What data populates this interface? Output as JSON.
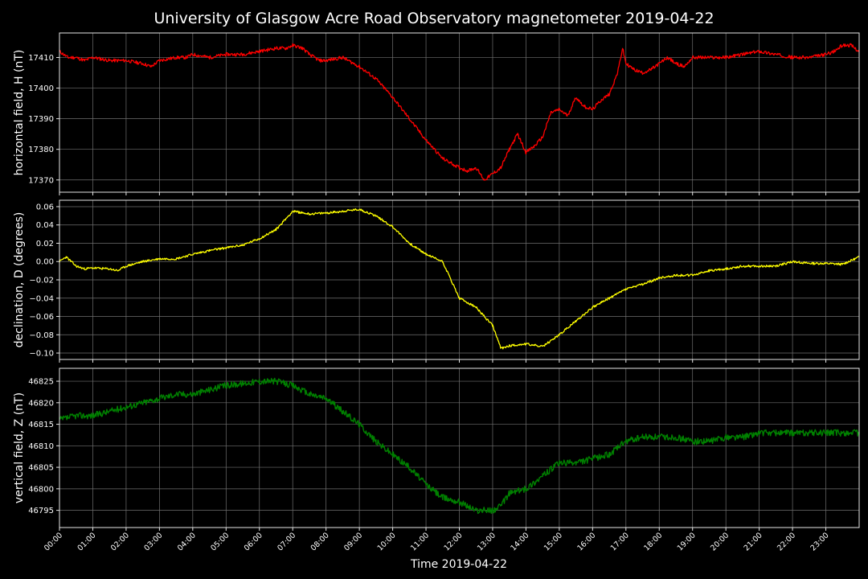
{
  "chart_data": {
    "type": "line",
    "title": "University of Glasgow Acre Road Observatory magnetometer 2019-04-22",
    "xlabel": "Time 2019-04-22",
    "x_tick_labels": [
      "00:00",
      "01:00",
      "02:00",
      "03:00",
      "04:00",
      "05:00",
      "06:00",
      "07:00",
      "08:00",
      "09:00",
      "10:00",
      "11:00",
      "12:00",
      "13:00",
      "14:00",
      "15:00",
      "16:00",
      "17:00",
      "18:00",
      "19:00",
      "20:00",
      "21:00",
      "22:00",
      "23:00"
    ],
    "xlim_hours": [
      0,
      24
    ],
    "panels": [
      {
        "id": "h",
        "ylabel": "horizontal field, H (nT)",
        "color": "#ff0000",
        "ylim": [
          17366,
          17418
        ],
        "yticks": [
          17370,
          17380,
          17390,
          17400,
          17410
        ],
        "ytick_labels": [
          "17370",
          "17380",
          "17390",
          "17400",
          "17410"
        ],
        "x_hours": [
          0,
          0.25,
          0.5,
          0.75,
          1,
          1.5,
          2,
          2.5,
          2.75,
          3,
          3.5,
          3.8,
          4,
          4.5,
          5,
          5.5,
          6,
          6.5,
          6.8,
          7,
          7.3,
          7.5,
          7.8,
          8,
          8.5,
          9,
          9.5,
          10,
          10.5,
          11,
          11.5,
          12,
          12.25,
          12.5,
          12.75,
          13,
          13.25,
          13.5,
          13.75,
          14,
          14.25,
          14.5,
          14.75,
          15,
          15.25,
          15.5,
          15.75,
          16,
          16.25,
          16.5,
          16.75,
          16.9,
          17,
          17.25,
          17.5,
          17.75,
          18,
          18.25,
          18.5,
          18.75,
          19,
          19.5,
          20,
          20.5,
          21,
          21.5,
          22,
          22.5,
          23,
          23.25,
          23.5,
          23.75,
          24
        ],
        "values": [
          17412,
          17410,
          17410,
          17409,
          17410,
          17409,
          17409,
          17408,
          17407,
          17409,
          17410,
          17410,
          17411,
          17410,
          17411,
          17411,
          17412,
          17413,
          17413,
          17414,
          17413,
          17411,
          17409,
          17409,
          17410,
          17407,
          17403,
          17397,
          17390,
          17383,
          17377,
          17374,
          17373,
          17374,
          17370,
          17372,
          17374,
          17380,
          17385,
          17379,
          17381,
          17384,
          17392,
          17393,
          17391,
          17397,
          17394,
          17393,
          17396,
          17398,
          17405,
          17413,
          17408,
          17406,
          17405,
          17406,
          17408,
          17410,
          17408,
          17407,
          17410,
          17410,
          17410,
          17411,
          17412,
          17411,
          17410,
          17410,
          17411,
          17412,
          17414,
          17414,
          17412
        ]
      },
      {
        "id": "d",
        "ylabel": "declination, D (degrees)",
        "color": "#ffff00",
        "ylim": [
          -0.107,
          0.067
        ],
        "yticks": [
          -0.1,
          -0.08,
          -0.06,
          -0.04,
          -0.02,
          0.0,
          0.02,
          0.04,
          0.06
        ],
        "ytick_labels": [
          "−0.10",
          "−0.08",
          "−0.06",
          "−0.04",
          "−0.02",
          "0.00",
          "0.02",
          "0.04",
          "0.06"
        ],
        "x_hours": [
          0,
          0.2,
          0.5,
          0.75,
          1,
          1.5,
          1.75,
          2,
          2.5,
          3,
          3.5,
          4,
          4.5,
          5,
          5.5,
          6,
          6.5,
          7,
          7.5,
          8,
          8.5,
          9,
          9.5,
          10,
          10.5,
          11,
          11.5,
          12,
          12.5,
          13,
          13.25,
          13.5,
          14,
          14.5,
          15,
          15.5,
          16,
          16.5,
          17,
          17.5,
          18,
          18.5,
          19,
          19.5,
          20,
          20.5,
          21,
          21.5,
          22,
          22.5,
          23,
          23.5,
          24
        ],
        "values": [
          0.0,
          0.005,
          -0.005,
          -0.008,
          -0.007,
          -0.008,
          -0.01,
          -0.005,
          0.0,
          0.003,
          0.003,
          0.008,
          0.012,
          0.015,
          0.018,
          0.025,
          0.035,
          0.055,
          0.052,
          0.053,
          0.055,
          0.057,
          0.05,
          0.038,
          0.02,
          0.008,
          0.0,
          -0.04,
          -0.05,
          -0.07,
          -0.095,
          -0.092,
          -0.09,
          -0.093,
          -0.08,
          -0.065,
          -0.05,
          -0.04,
          -0.03,
          -0.025,
          -0.018,
          -0.015,
          -0.015,
          -0.01,
          -0.008,
          -0.005,
          -0.005,
          -0.005,
          0.0,
          -0.002,
          -0.002,
          -0.003,
          0.005
        ]
      },
      {
        "id": "z",
        "ylabel": "vertical field, Z (nT)",
        "color": "#008000",
        "ylim": [
          46791,
          46828
        ],
        "yticks": [
          46795,
          46800,
          46805,
          46810,
          46815,
          46820,
          46825
        ],
        "ytick_labels": [
          "46795",
          "46800",
          "46805",
          "46810",
          "46815",
          "46820",
          "46825"
        ],
        "x_hours": [
          0,
          0.5,
          1,
          1.5,
          2,
          2.5,
          3,
          3.5,
          4,
          4.5,
          5,
          5.5,
          6,
          6.5,
          7,
          7.5,
          8,
          8.5,
          9,
          9.5,
          10,
          10.5,
          11,
          11.5,
          12,
          12.5,
          13,
          13.25,
          13.5,
          14,
          14.5,
          15,
          15.5,
          16,
          16.5,
          17,
          17.5,
          18,
          18.5,
          19,
          19.5,
          20,
          20.5,
          21,
          21.5,
          22,
          22.5,
          23,
          23.5,
          24
        ],
        "values": [
          46816,
          46817,
          46817,
          46818,
          46819,
          46820,
          46821,
          46822,
          46822,
          46823,
          46824,
          46824.5,
          46825,
          46825,
          46824,
          46822,
          46821,
          46818,
          46815,
          46811,
          46808,
          46805,
          46801,
          46798,
          46797,
          46795,
          46795,
          46796,
          46799,
          46800,
          46803,
          46806,
          46806,
          46807,
          46808,
          46811,
          46812,
          46812,
          46812,
          46811,
          46811,
          46812,
          46812,
          46813,
          46813,
          46813,
          46813,
          46813,
          46813,
          46813
        ]
      }
    ]
  }
}
